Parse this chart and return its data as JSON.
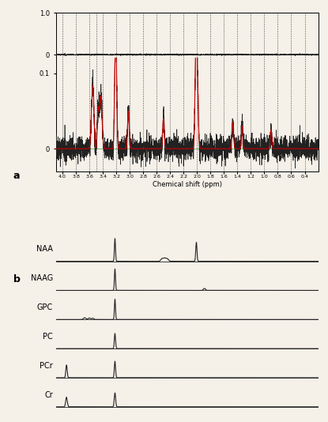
{
  "title_a": "a",
  "title_b": "b",
  "xlabel": "Chemical shift (ppm)",
  "xmin": 0.2,
  "xmax": 4.1,
  "dashed_line_positions": [
    4.0,
    3.8,
    3.6,
    3.5,
    3.4,
    3.2,
    3.0,
    2.8,
    2.6,
    2.4,
    2.2,
    2.0,
    1.8,
    1.6,
    1.4,
    1.2,
    1.0,
    0.8,
    0.6,
    0.4
  ],
  "metabolite_labels": [
    "NAA",
    "NAAG",
    "GPC",
    "PC",
    "PCr",
    "Cr"
  ],
  "background_color": "#f5f0e8",
  "signal_color": "#222222",
  "fit_color": "#cc0000"
}
